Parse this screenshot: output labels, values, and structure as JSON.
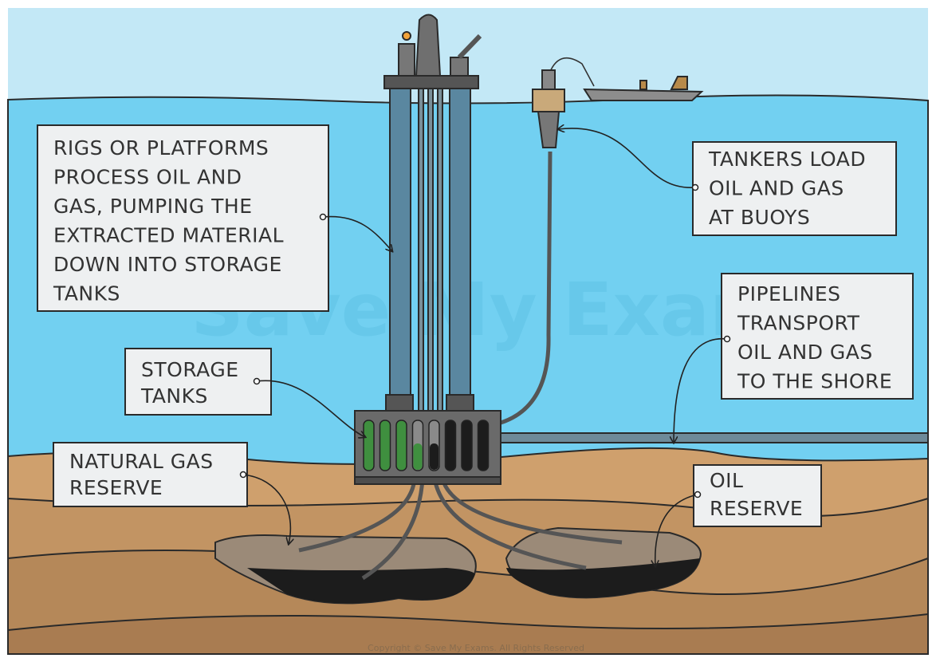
{
  "callouts": [
    {
      "lines": [
        "RIGS OR PLATFORMS",
        "PROCESS OIL AND",
        "GAS, PUMPING THE",
        "EXTRACTED MATERIAL",
        "DOWN INTO STORAGE",
        "TANKS"
      ]
    },
    {
      "lines": [
        "STORAGE",
        "TANKS"
      ]
    },
    {
      "lines": [
        "NATURAL GAS",
        "RESERVE"
      ]
    },
    {
      "lines": [
        "TANKERS LOAD",
        "OIL AND GAS",
        "AT BUOYS"
      ]
    },
    {
      "lines": [
        "PIPELINES",
        "TRANSPORT",
        "OIL AND GAS",
        "TO THE SHORE"
      ]
    },
    {
      "lines": [
        "OIL",
        "RESERVE"
      ]
    }
  ],
  "watermark": "Save My Exams",
  "copyright": "Copyright © Save My Exams. All Rights Reserved"
}
